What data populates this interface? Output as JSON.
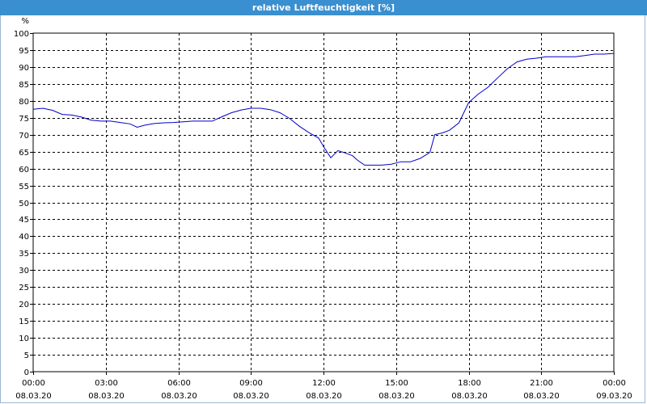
{
  "window": {
    "title": "relative Luftfeuchtigkeit [%]"
  },
  "chart_data": {
    "type": "line",
    "title": "relative Luftfeuchtigkeit [%]",
    "ylabel": "%",
    "xlabel": "",
    "ylim": [
      0,
      100
    ],
    "y_ticks": [
      0,
      5,
      10,
      15,
      20,
      25,
      30,
      35,
      40,
      45,
      50,
      55,
      60,
      65,
      70,
      75,
      80,
      85,
      90,
      95,
      100
    ],
    "xlim": [
      0,
      24
    ],
    "x_ticks": [
      {
        "x": 0,
        "time": "00:00",
        "date": "08.03.20"
      },
      {
        "x": 3,
        "time": "03:00",
        "date": "08.03.20"
      },
      {
        "x": 6,
        "time": "06:00",
        "date": "08.03.20"
      },
      {
        "x": 9,
        "time": "09:00",
        "date": "08.03.20"
      },
      {
        "x": 12,
        "time": "12:00",
        "date": "08.03.20"
      },
      {
        "x": 15,
        "time": "15:00",
        "date": "08.03.20"
      },
      {
        "x": 18,
        "time": "18:00",
        "date": "08.03.20"
      },
      {
        "x": 21,
        "time": "21:00",
        "date": "08.03.20"
      },
      {
        "x": 24,
        "time": "00:00",
        "date": "09.03.20"
      }
    ],
    "grid": true,
    "line_color": "#0000cc",
    "series": [
      {
        "x": [
          0,
          0.4,
          0.8,
          1.2,
          1.6,
          2.0,
          2.4,
          2.8,
          3.2,
          3.6,
          4.0,
          4.3,
          4.6,
          5.0,
          5.4,
          5.8,
          6.2,
          6.6,
          7.0,
          7.4,
          7.8,
          8.2,
          8.6,
          9.0,
          9.4,
          9.8,
          10.2,
          10.6,
          11.0,
          11.4,
          11.8,
          12.0,
          12.3,
          12.6,
          12.9,
          13.2,
          13.4,
          13.7,
          14.0,
          14.4,
          14.8,
          15.2,
          15.6,
          16.0,
          16.4,
          16.6,
          16.9,
          17.2,
          17.6,
          18.0,
          18.4,
          18.8,
          19.2,
          19.6,
          20.0,
          20.4,
          20.8,
          21.2,
          21.6,
          22.0,
          22.4,
          22.8,
          23.2,
          23.6,
          24.0
        ],
        "values": [
          77.5,
          77.8,
          77.2,
          76.0,
          75.8,
          75.2,
          74.3,
          74.0,
          74.0,
          73.6,
          73.2,
          72.2,
          72.8,
          73.3,
          73.5,
          73.6,
          73.8,
          74.0,
          74.0,
          74.0,
          75.3,
          76.5,
          77.3,
          77.8,
          77.8,
          77.4,
          76.5,
          74.8,
          72.5,
          70.6,
          69.0,
          66.5,
          63.2,
          65.3,
          64.6,
          63.8,
          62.5,
          61.0,
          61.0,
          61.0,
          61.3,
          62.0,
          62.0,
          63.0,
          64.8,
          70.0,
          70.5,
          71.3,
          73.5,
          79.5,
          82.0,
          84.0,
          86.8,
          89.5,
          91.5,
          92.3,
          92.6,
          93.0,
          93.0,
          93.0,
          93.0,
          93.4,
          93.8,
          93.8,
          94.0
        ]
      }
    ]
  }
}
